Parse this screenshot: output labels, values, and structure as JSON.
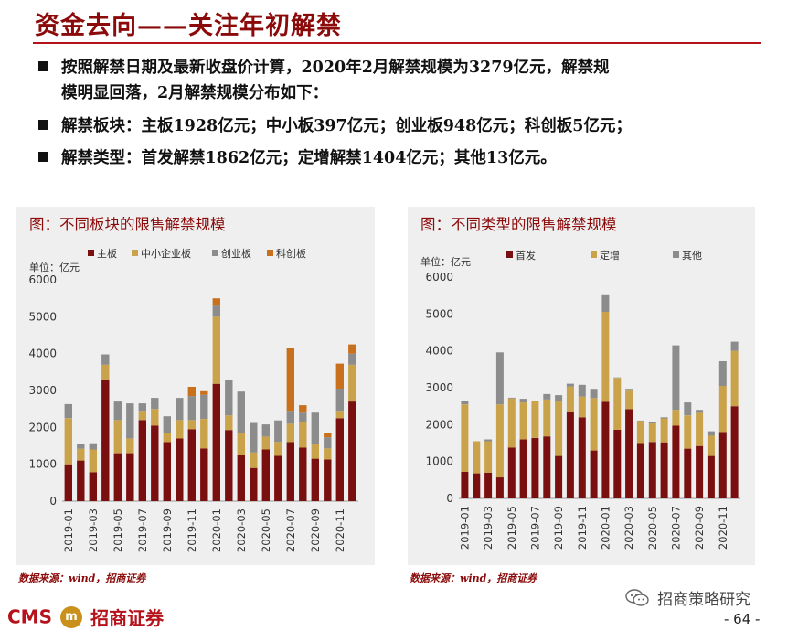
{
  "title": "资金去向——关注年初解禁",
  "bullets": [
    {
      "line1": "按照解禁日期及最新收盘价计算，2020年2月解禁规模为3279亿元，解禁规",
      "line2": "模明显回落，2月解禁规模分布如下："
    },
    {
      "line1": "解禁板块：主板1928亿元；中小板397亿元；创业板948亿元；科创板5亿元；"
    },
    {
      "line1": "解禁类型：首发解禁1862亿元；定增解禁1404亿元；其他13亿元。"
    }
  ],
  "source_text": "数据来源：wind，招商证券",
  "footer": {
    "logo_cms": "CMS",
    "logo_badge": "m",
    "logo_cn": "招商证券",
    "wechat": "招商策略研究",
    "page": "- 64 -"
  },
  "colors": {
    "main": "#7a0f10",
    "sme": "#c9a24a",
    "gem": "#8c8c8c",
    "star": "#c8701c",
    "panel_bg": "#efefef",
    "title": "#8b0a0a"
  },
  "chart_data": [
    {
      "type": "bar",
      "stacked": true,
      "title": "图：不同板块的限售解禁规模",
      "unit_label": "单位：亿元",
      "ylim": [
        0,
        6000
      ],
      "yticks": [
        0,
        1000,
        2000,
        3000,
        4000,
        5000,
        6000
      ],
      "categories": [
        "2019-01",
        "2019-02",
        "2019-03",
        "2019-04",
        "2019-05",
        "2019-06",
        "2019-07",
        "2019-08",
        "2019-09",
        "2019-10",
        "2019-11",
        "2019-12",
        "2020-01",
        "2020-02",
        "2020-03",
        "2020-04",
        "2020-05",
        "2020-06",
        "2020-07",
        "2020-08",
        "2020-09",
        "2020-10",
        "2020-11",
        "2020-12"
      ],
      "xtick_labels": [
        "2019-01",
        "2019-03",
        "2019-05",
        "2019-07",
        "2019-09",
        "2019-11",
        "2020-01",
        "2020-03",
        "2020-05",
        "2020-07",
        "2020-09",
        "2020-11"
      ],
      "series": [
        {
          "name": "主板",
          "color": "#7a0f10",
          "values": [
            1000,
            1100,
            780,
            3300,
            1300,
            1300,
            2200,
            2050,
            1600,
            1700,
            1950,
            1430,
            3180,
            1928,
            1250,
            900,
            1400,
            1230,
            1600,
            1450,
            1150,
            1130,
            2250,
            2700
          ]
        },
        {
          "name": "中小企业板",
          "color": "#c9a24a",
          "values": [
            1250,
            320,
            620,
            400,
            900,
            400,
            250,
            450,
            250,
            500,
            250,
            800,
            1820,
            397,
            600,
            420,
            350,
            380,
            500,
            700,
            400,
            300,
            200,
            1000
          ]
        },
        {
          "name": "创业板",
          "color": "#8c8c8c",
          "values": [
            380,
            130,
            170,
            280,
            500,
            950,
            200,
            300,
            450,
            600,
            650,
            650,
            300,
            948,
            1120,
            800,
            330,
            580,
            350,
            250,
            850,
            300,
            600,
            300
          ]
        },
        {
          "name": "科创板",
          "color": "#c8701c",
          "values": [
            0,
            0,
            0,
            0,
            0,
            0,
            0,
            0,
            0,
            0,
            250,
            100,
            200,
            5,
            0,
            0,
            0,
            0,
            1700,
            200,
            0,
            120,
            680,
            250
          ]
        }
      ]
    },
    {
      "type": "bar",
      "stacked": true,
      "title": "图：不同类型的限售解禁规模",
      "unit_label": "单位：亿元",
      "ylim": [
        0,
        6000
      ],
      "yticks": [
        0,
        1000,
        2000,
        3000,
        4000,
        5000,
        6000
      ],
      "categories": [
        "2019-01",
        "2019-02",
        "2019-03",
        "2019-04",
        "2019-05",
        "2019-06",
        "2019-07",
        "2019-08",
        "2019-09",
        "2019-10",
        "2019-11",
        "2019-12",
        "2020-01",
        "2020-02",
        "2020-03",
        "2020-04",
        "2020-05",
        "2020-06",
        "2020-07",
        "2020-08",
        "2020-09",
        "2020-10",
        "2020-11",
        "2020-12"
      ],
      "xtick_labels": [
        "2019-01",
        "2019-03",
        "2019-05",
        "2019-07",
        "2019-09",
        "2019-11",
        "2020-01",
        "2020-03",
        "2020-05",
        "2020-07",
        "2020-09",
        "2020-11"
      ],
      "series": [
        {
          "name": "首发",
          "color": "#7a0f10",
          "values": [
            720,
            680,
            700,
            570,
            1380,
            1600,
            1640,
            1680,
            1150,
            2330,
            2200,
            1300,
            2620,
            1862,
            2420,
            1500,
            1530,
            1520,
            1970,
            1350,
            1420,
            1150,
            1800,
            2500
          ]
        },
        {
          "name": "定增",
          "color": "#c9a24a",
          "values": [
            1830,
            870,
            850,
            1980,
            1330,
            1000,
            1000,
            1000,
            1500,
            700,
            560,
            1420,
            2440,
            1404,
            500,
            600,
            500,
            650,
            430,
            900,
            900,
            550,
            1250,
            1500
          ]
        },
        {
          "name": "其他",
          "color": "#8c8c8c",
          "values": [
            80,
            0,
            50,
            1410,
            20,
            100,
            0,
            150,
            150,
            80,
            320,
            250,
            450,
            13,
            50,
            10,
            50,
            30,
            1750,
            350,
            80,
            120,
            670,
            250
          ]
        }
      ]
    }
  ]
}
